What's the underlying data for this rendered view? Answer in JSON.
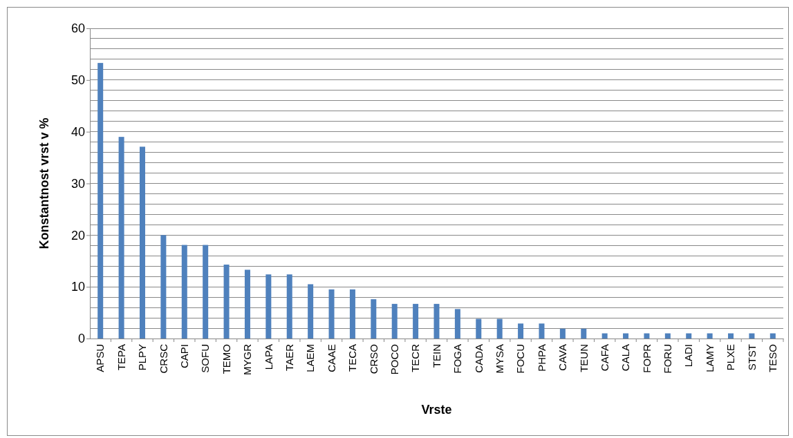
{
  "chart_data": {
    "type": "bar",
    "xlabel": "Vrste",
    "ylabel": "Konstantnost vrst v %",
    "categories": [
      "APSU",
      "TEPA",
      "PLPY",
      "CRSC",
      "CAPI",
      "SOFU",
      "TEMO",
      "MYGR",
      "LAPA",
      "TAER",
      "LAEM",
      "CAAE",
      "TECA",
      "CRSO",
      "POCO",
      "TECR",
      "TEIN",
      "FOGA",
      "CADA",
      "MYSA",
      "FOCU",
      "PHPA",
      "CAVA",
      "TEUN",
      "CAFA",
      "CALA",
      "FOPR",
      "FORU",
      "LADI",
      "LAMY",
      "PLXE",
      "STST",
      "TESO"
    ],
    "values": [
      53.3,
      39.0,
      37.1,
      20.0,
      18.1,
      18.1,
      14.3,
      13.3,
      12.4,
      12.4,
      10.5,
      9.5,
      9.5,
      7.6,
      6.7,
      6.7,
      6.7,
      5.7,
      3.8,
      3.8,
      2.9,
      2.9,
      1.9,
      1.9,
      1.0,
      1.0,
      1.0,
      1.0,
      1.0,
      1.0,
      1.0,
      1.0,
      1.0
    ],
    "color": "#4f81bd",
    "ylim": [
      0,
      60
    ],
    "yticks": [
      0,
      {
        "value": 2,
        "label": null
      },
      {
        "value": 4,
        "label": null
      },
      {
        "value": 6,
        "label": null
      },
      {
        "value": 8,
        "label": null
      },
      10,
      {
        "value": 12,
        "label": null
      },
      {
        "value": 14,
        "label": null
      },
      {
        "value": 16,
        "label": null
      },
      {
        "value": 18,
        "label": null
      },
      20,
      {
        "value": 22,
        "label": null
      },
      {
        "value": 24,
        "label": null
      },
      {
        "value": 26,
        "label": null
      },
      {
        "value": 28,
        "label": null
      },
      30,
      {
        "value": 32,
        "label": null
      },
      {
        "value": 34,
        "label": null
      },
      {
        "value": 36,
        "label": null
      },
      {
        "value": 38,
        "label": null
      },
      40,
      {
        "value": 42,
        "label": null
      },
      {
        "value": 44,
        "label": null
      },
      {
        "value": 46,
        "label": null
      },
      {
        "value": 48,
        "label": null
      },
      50,
      {
        "value": 52,
        "label": null
      },
      {
        "value": 54,
        "label": null
      },
      {
        "value": 56,
        "label": null
      },
      {
        "value": 58,
        "label": null
      },
      60
    ],
    "grid": true
  }
}
